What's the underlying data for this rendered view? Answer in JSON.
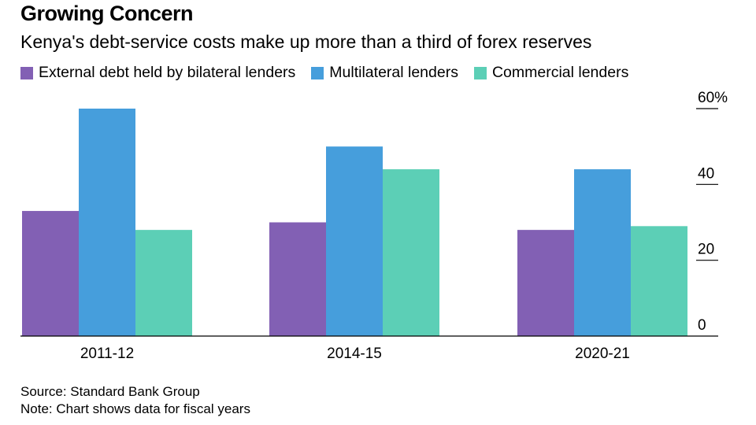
{
  "chart_data": {
    "type": "bar",
    "title": "Growing Concern",
    "subtitle": "Kenya's debt-service costs make up more than a third of forex reserves",
    "categories": [
      "2011-12",
      "2014-15",
      "2020-21"
    ],
    "series": [
      {
        "name": "External debt held by bilateral lenders",
        "color": "#8260b4",
        "values": [
          33,
          30,
          28
        ]
      },
      {
        "name": "Multilateral lenders",
        "color": "#469edc",
        "values": [
          60,
          50,
          44
        ]
      },
      {
        "name": "Commercial lenders",
        "color": "#5ccfb6",
        "values": [
          28,
          44,
          29
        ]
      }
    ],
    "yticks": [
      {
        "value": 0,
        "label": "0"
      },
      {
        "value": 20,
        "label": "20"
      },
      {
        "value": 40,
        "label": "40"
      },
      {
        "value": 60,
        "label": "60%"
      }
    ],
    "ylim": [
      0,
      60
    ],
    "xlabel": "",
    "ylabel": "",
    "legend_position": "top",
    "axis_side": "right"
  },
  "footer": {
    "source": "Source: Standard Bank Group",
    "note": "Note: Chart shows data for fiscal years"
  }
}
